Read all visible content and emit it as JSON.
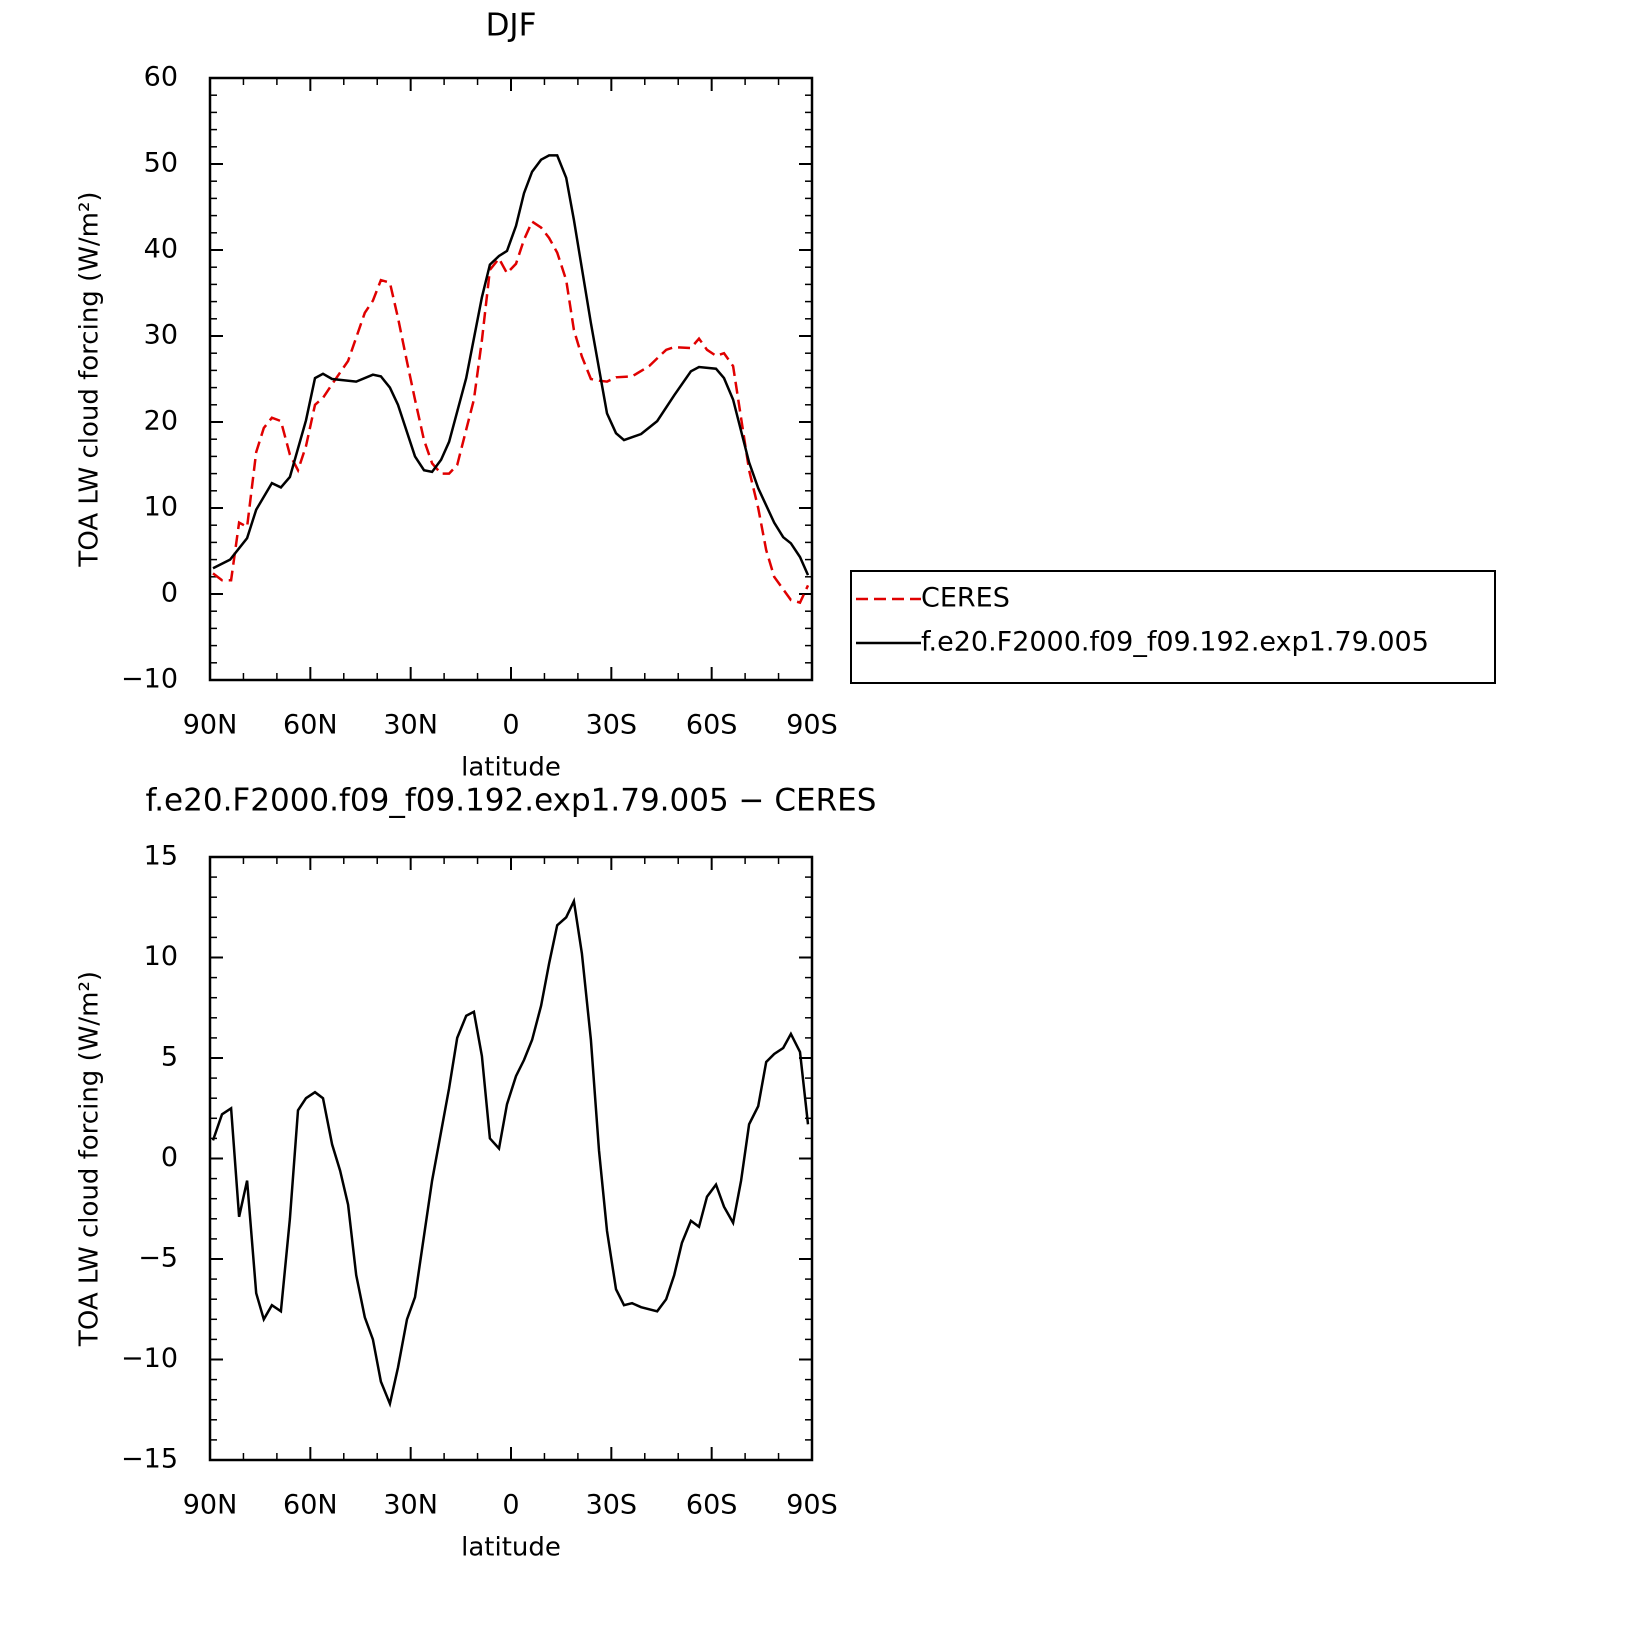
{
  "chart_data": [
    {
      "type": "line",
      "title": "DJF",
      "xlabel": "latitude",
      "ylabel": "TOA LW cloud forcing (W/m²)",
      "xlim": [
        90,
        -90
      ],
      "xticks": [
        {
          "value": 90,
          "label": "90N"
        },
        {
          "value": 60,
          "label": "60N"
        },
        {
          "value": 30,
          "label": "30N"
        },
        0,
        {
          "value": -30,
          "label": "30S"
        },
        {
          "value": -60,
          "label": "60S"
        },
        {
          "value": -90,
          "label": "90S"
        }
      ],
      "xminorticks": [
        80,
        70,
        50,
        40,
        20,
        10,
        -10,
        -20,
        -40,
        -50,
        -70,
        -80
      ],
      "ylim": [
        -10,
        60
      ],
      "yticks": [
        {
          "value": -10,
          "label": "−10"
        },
        0,
        10,
        20,
        30,
        40,
        50,
        60
      ],
      "yminorticks": [
        -8,
        -6,
        -4,
        -2,
        2,
        4,
        6,
        8,
        12,
        14,
        16,
        18,
        22,
        24,
        26,
        28,
        32,
        34,
        36,
        38,
        42,
        44,
        46,
        48,
        52,
        54,
        56,
        58
      ],
      "legend": "right",
      "series": [
        {
          "name": "CERES",
          "color": "#e00000",
          "linestyle": "dashed",
          "x": [
            89.1,
            86.4,
            83.7,
            81.3,
            78.9,
            76.2,
            73.9,
            71.5,
            68.8,
            66.1,
            63.7,
            61.3,
            58.6,
            56.2,
            53.5,
            48.7,
            43.7,
            41.3,
            38.9,
            36.2,
            33.8,
            31.1,
            28.7,
            26.0,
            23.6,
            20.9,
            18.5,
            16.1,
            13.4,
            11.1,
            8.7,
            6.3,
            3.6,
            1.2,
            -1.5,
            -3.9,
            -6.3,
            -9.0,
            -11.4,
            -13.8,
            -16.5,
            -18.8,
            -21.2,
            -23.9,
            -26.3,
            -28.7,
            -31.4,
            -36.2,
            -41.3,
            -46.4,
            -48.8,
            -53.8,
            -56.2,
            -58.6,
            -61.3,
            -63.7,
            -66.4,
            -71.2,
            -73.9,
            -76.3,
            -78.7,
            -83.7,
            -86.4,
            -88.8
          ],
          "values": [
            2.4,
            1.6,
            1.6,
            8.3,
            7.8,
            16.5,
            19.3,
            20.5,
            20.1,
            16.2,
            14.4,
            17.2,
            22.0,
            22.8,
            24.4,
            27.1,
            32.7,
            34.1,
            36.5,
            36.2,
            32.1,
            27.0,
            22.6,
            17.9,
            15.2,
            14.0,
            14.0,
            15.0,
            19.1,
            22.6,
            29.5,
            37.7,
            39.0,
            37.3,
            38.4,
            41.2,
            43.3,
            42.6,
            41.4,
            39.7,
            36.5,
            30.7,
            27.6,
            25.0,
            24.8,
            24.7,
            25.2,
            25.3,
            26.5,
            28.4,
            28.7,
            28.6,
            29.7,
            28.4,
            27.7,
            28.0,
            26.5,
            14.4,
            10.0,
            5.1,
            2.0,
            -0.7,
            -1.0,
            1.0
          ]
        },
        {
          "name": "f.e20.F2000.f09_f09.192.exp1.79.005",
          "color": "#000000",
          "linestyle": "solid",
          "x": [
            89.1,
            84.0,
            78.9,
            76.2,
            71.5,
            68.8,
            66.1,
            61.3,
            58.6,
            56.2,
            53.5,
            46.3,
            41.3,
            38.9,
            36.2,
            33.8,
            28.7,
            26.0,
            23.6,
            20.9,
            18.5,
            13.4,
            8.7,
            6.3,
            3.6,
            1.2,
            -1.5,
            -3.9,
            -6.3,
            -9.0,
            -11.4,
            -13.8,
            -16.5,
            -18.8,
            -23.9,
            -28.7,
            -31.4,
            -33.8,
            -38.9,
            -43.7,
            -48.8,
            -53.8,
            -56.2,
            -61.3,
            -63.7,
            -66.4,
            -71.2,
            -73.9,
            -78.7,
            -81.4,
            -83.7,
            -86.4,
            -88.8
          ],
          "values": [
            3.0,
            4.0,
            6.5,
            9.8,
            12.9,
            12.4,
            13.6,
            20.2,
            25.1,
            25.6,
            25.0,
            24.7,
            25.5,
            25.3,
            24.0,
            22.0,
            16.0,
            14.4,
            14.2,
            15.6,
            17.7,
            25.1,
            34.5,
            38.3,
            39.3,
            39.9,
            42.8,
            46.6,
            49.1,
            50.5,
            51.0,
            51.0,
            48.4,
            43.5,
            31.5,
            21.0,
            18.7,
            17.9,
            18.6,
            20.1,
            23.1,
            25.9,
            26.4,
            26.2,
            25.1,
            22.6,
            15.3,
            12.3,
            8.3,
            6.6,
            5.9,
            4.3,
            2.2
          ]
        }
      ]
    },
    {
      "type": "line",
      "title": "f.e20.F2000.f09_f09.192.exp1.79.005 − CERES",
      "xlabel": "latitude",
      "ylabel": "TOA LW cloud forcing (W/m²)",
      "xlim": [
        90,
        -90
      ],
      "xticks": [
        {
          "value": 90,
          "label": "90N"
        },
        {
          "value": 60,
          "label": "60N"
        },
        {
          "value": 30,
          "label": "30N"
        },
        0,
        {
          "value": -30,
          "label": "30S"
        },
        {
          "value": -60,
          "label": "60S"
        },
        {
          "value": -90,
          "label": "90S"
        }
      ],
      "xminorticks": [
        80,
        70,
        50,
        40,
        20,
        10,
        -10,
        -20,
        -40,
        -50,
        -70,
        -80
      ],
      "ylim": [
        -15,
        15
      ],
      "yticks": [
        {
          "value": -15,
          "label": "−15"
        },
        {
          "value": -10,
          "label": "−10"
        },
        {
          "value": -5,
          "label": "−5"
        },
        0,
        5,
        10,
        15
      ],
      "yminorticks": [
        -14,
        -13,
        -12,
        -11,
        -9,
        -8,
        -7,
        -6,
        -4,
        -3,
        -2,
        -1,
        1,
        2,
        3,
        4,
        6,
        7,
        8,
        9,
        11,
        12,
        13,
        14
      ],
      "series": [
        {
          "color": "#000000",
          "linestyle": "solid",
          "x": [
            89.1,
            86.4,
            83.7,
            81.3,
            78.9,
            76.2,
            73.9,
            71.5,
            68.8,
            66.1,
            63.7,
            61.3,
            58.6,
            56.2,
            53.5,
            51.1,
            48.7,
            46.3,
            43.7,
            41.3,
            38.9,
            36.2,
            33.8,
            31.1,
            28.7,
            23.6,
            18.5,
            16.1,
            13.4,
            11.1,
            8.7,
            6.3,
            3.6,
            1.2,
            -1.5,
            -3.9,
            -6.3,
            -9.0,
            -11.4,
            -13.8,
            -16.5,
            -18.8,
            -21.2,
            -23.9,
            -26.3,
            -28.7,
            -31.4,
            -33.8,
            -36.2,
            -38.9,
            -43.7,
            -46.4,
            -48.8,
            -51.1,
            -53.8,
            -56.2,
            -58.6,
            -61.3,
            -63.7,
            -66.4,
            -68.8,
            -71.2,
            -73.9,
            -76.3,
            -78.7,
            -81.4,
            -83.7,
            -86.4,
            -88.8
          ],
          "values": [
            0.9,
            2.2,
            2.5,
            -2.9,
            -1.1,
            -6.7,
            -8.0,
            -7.3,
            -7.6,
            -3.0,
            2.4,
            3.0,
            3.3,
            3.0,
            0.7,
            -0.6,
            -2.3,
            -5.8,
            -7.9,
            -9.0,
            -11.1,
            -12.2,
            -10.4,
            -8.0,
            -6.9,
            -1.1,
            3.5,
            6.0,
            7.1,
            7.3,
            5.1,
            1.0,
            0.5,
            2.7,
            4.1,
            4.9,
            5.9,
            7.6,
            9.7,
            11.6,
            12.0,
            12.8,
            10.2,
            5.9,
            0.4,
            -3.6,
            -6.5,
            -7.3,
            -7.2,
            -7.4,
            -7.6,
            -7.0,
            -5.8,
            -4.2,
            -3.1,
            -3.4,
            -1.9,
            -1.3,
            -2.4,
            -3.2,
            -1.1,
            1.7,
            2.6,
            4.8,
            5.2,
            5.5,
            6.2,
            5.3,
            1.7
          ]
        }
      ]
    }
  ]
}
